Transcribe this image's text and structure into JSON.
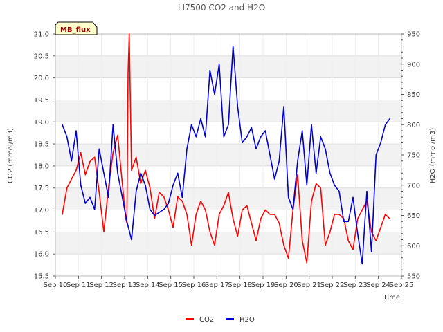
{
  "chart_data": {
    "type": "line",
    "title": "LI7500 CO2 and H2O",
    "badge": "MB_flux",
    "xlabel": "Time",
    "ylabel_left": "CO2 (mmol/m3)",
    "ylabel_right": "H2O (mmol/m3)",
    "ylim_left": [
      15.5,
      21.0
    ],
    "ylim_right": [
      550,
      950
    ],
    "yticks_left": [
      "15.5",
      "16.0",
      "16.5",
      "17.0",
      "17.5",
      "18.0",
      "18.5",
      "19.0",
      "19.5",
      "20.0",
      "20.5",
      "21.0"
    ],
    "yticks_right": [
      "550",
      "600",
      "650",
      "700",
      "750",
      "800",
      "850",
      "900",
      "950"
    ],
    "xlim": [
      10,
      25
    ],
    "xticks": [
      "Sep 10",
      "Sep 11",
      "Sep 12",
      "Sep 13",
      "Sep 14",
      "Sep 15",
      "Sep 16",
      "Sep 17",
      "Sep 18",
      "Sep 19",
      "Sep 20",
      "Sep 21",
      "Sep 22",
      "Sep 23",
      "Sep 24",
      "Sep 25"
    ],
    "grid": true,
    "legend": "bottom-center",
    "series": [
      {
        "name": "CO2",
        "axis": "left",
        "color": "#ff0000",
        "x": [
          10.3,
          10.5,
          10.7,
          10.9,
          11.1,
          11.3,
          11.5,
          11.7,
          11.9,
          12.1,
          12.3,
          12.5,
          12.7,
          12.9,
          13.05,
          13.1,
          13.15,
          13.2,
          13.3,
          13.5,
          13.7,
          13.9,
          14.1,
          14.3,
          14.5,
          14.7,
          14.9,
          15.1,
          15.3,
          15.5,
          15.7,
          15.9,
          16.1,
          16.3,
          16.5,
          16.7,
          16.9,
          17.1,
          17.3,
          17.5,
          17.7,
          17.9,
          18.1,
          18.3,
          18.5,
          18.7,
          18.9,
          19.1,
          19.3,
          19.5,
          19.7,
          19.9,
          20.1,
          20.3,
          20.5,
          20.7,
          20.9,
          21.1,
          21.3,
          21.5,
          21.7,
          21.9,
          22.1,
          22.3,
          22.5,
          22.7,
          22.9,
          23.1,
          23.3,
          23.5,
          23.7,
          23.9,
          24.1,
          24.3,
          24.5
        ],
        "values": [
          16.9,
          17.5,
          17.7,
          17.9,
          18.3,
          17.8,
          18.1,
          18.2,
          17.4,
          16.5,
          17.5,
          18.3,
          18.7,
          17.6,
          16.8,
          16.7,
          20.1,
          21.0,
          17.9,
          18.2,
          17.6,
          17.9,
          17.5,
          16.8,
          17.4,
          17.3,
          17.0,
          16.6,
          17.3,
          17.2,
          16.9,
          16.2,
          16.9,
          17.2,
          17.0,
          16.5,
          16.2,
          16.9,
          17.1,
          17.4,
          16.8,
          16.4,
          17.0,
          17.1,
          16.7,
          16.3,
          16.8,
          17.0,
          16.9,
          16.9,
          16.7,
          16.2,
          15.9,
          17.0,
          17.8,
          16.3,
          15.8,
          17.2,
          17.6,
          17.5,
          16.2,
          16.5,
          16.9,
          16.9,
          16.8,
          16.3,
          16.1,
          16.8,
          17.0,
          17.2,
          16.5,
          16.3,
          16.6,
          16.9,
          16.8
        ]
      },
      {
        "name": "H2O",
        "axis": "right",
        "color": "#0000cc",
        "x": [
          10.3,
          10.5,
          10.7,
          10.9,
          11.1,
          11.3,
          11.5,
          11.7,
          11.9,
          12.1,
          12.3,
          12.5,
          12.7,
          12.9,
          13.1,
          13.3,
          13.5,
          13.7,
          13.9,
          14.1,
          14.3,
          14.5,
          14.7,
          14.9,
          15.1,
          15.3,
          15.5,
          15.7,
          15.9,
          16.1,
          16.3,
          16.5,
          16.7,
          16.9,
          17.1,
          17.3,
          17.5,
          17.7,
          17.9,
          18.1,
          18.3,
          18.5,
          18.7,
          18.9,
          19.1,
          19.3,
          19.5,
          19.7,
          19.9,
          20.1,
          20.3,
          20.5,
          20.7,
          20.9,
          21.1,
          21.3,
          21.5,
          21.7,
          21.9,
          22.1,
          22.3,
          22.5,
          22.7,
          22.9,
          23.1,
          23.3,
          23.5,
          23.7,
          23.9,
          24.1,
          24.3,
          24.5
        ],
        "values": [
          800,
          780,
          740,
          790,
          700,
          670,
          680,
          660,
          760,
          720,
          680,
          800,
          720,
          680,
          640,
          610,
          690,
          720,
          700,
          660,
          650,
          655,
          660,
          670,
          700,
          720,
          680,
          760,
          800,
          780,
          810,
          780,
          890,
          850,
          900,
          780,
          800,
          930,
          830,
          770,
          780,
          795,
          760,
          780,
          790,
          750,
          710,
          740,
          830,
          680,
          660,
          740,
          790,
          700,
          800,
          720,
          780,
          760,
          720,
          700,
          690,
          640,
          640,
          680,
          620,
          570,
          690,
          590,
          750,
          770,
          800,
          810
        ]
      }
    ]
  },
  "legend_labels": [
    "CO2",
    "H2O"
  ]
}
